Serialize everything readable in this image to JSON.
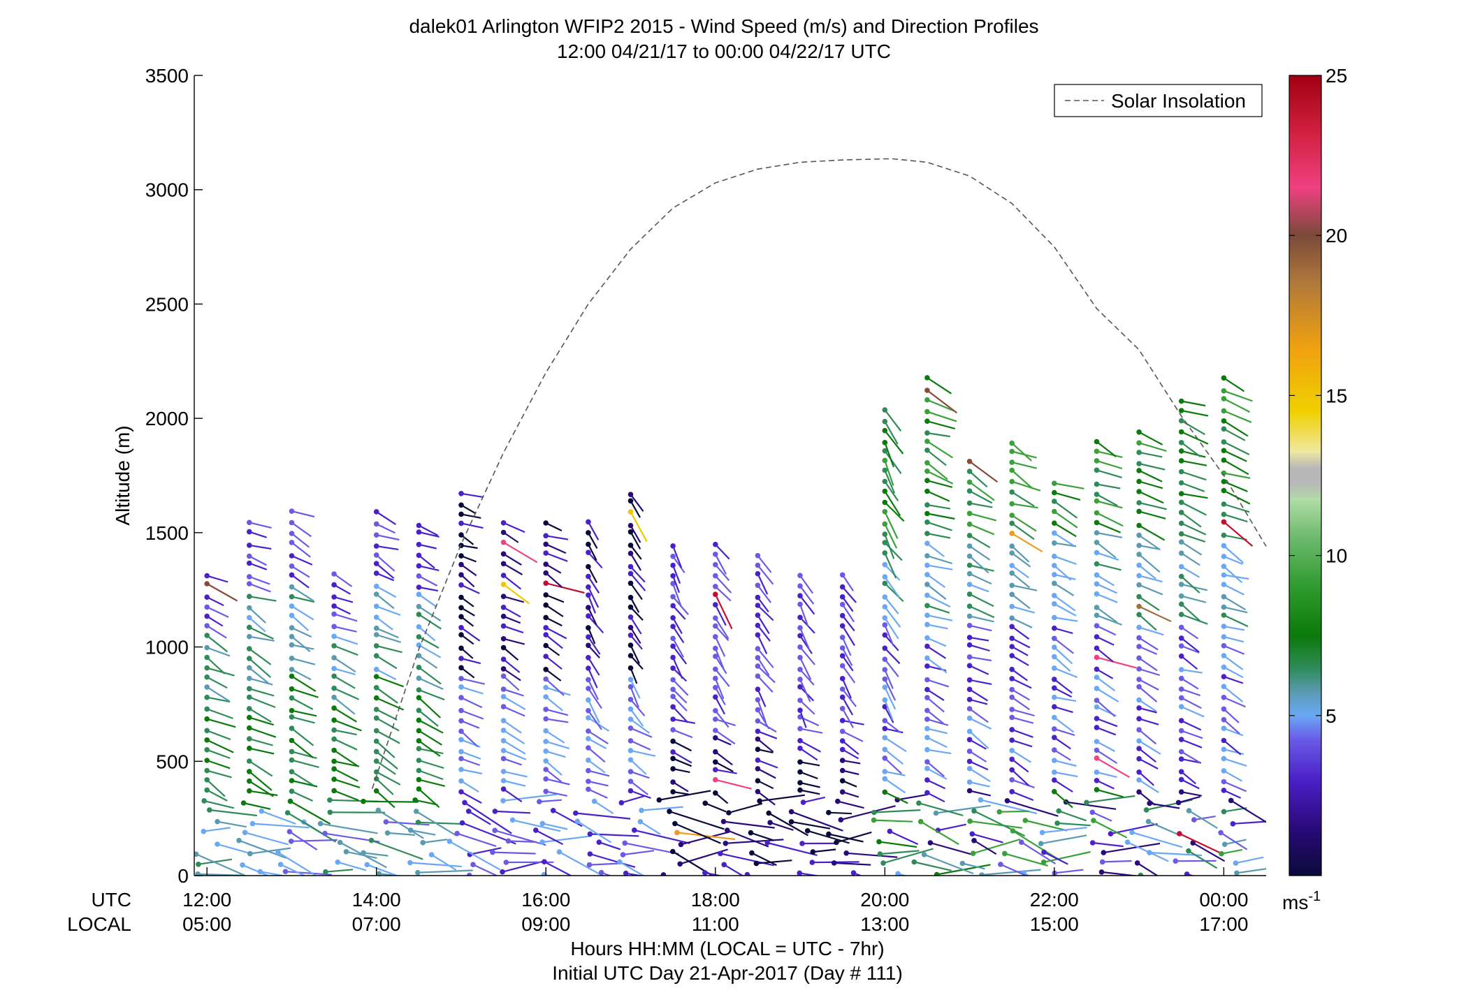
{
  "chart_data": {
    "type": "scatter",
    "subtype": "wind-barb-profile",
    "title": "dalek01 Arlington WFIP2 2015 - Wind Speed (m/s) and Direction Profiles",
    "subtitle": "12:00 04/21/17 to 00:00 04/22/17  UTC",
    "ylabel": "Altitude (m)",
    "xlabel": "Hours HH:MM  (LOCAL = UTC - 7hr)",
    "xlabel2": "Initial UTC Day 21-Apr-2017 (Day # 111)",
    "row_labels": {
      "utc": "UTC",
      "local": "LOCAL"
    },
    "ylim": [
      0,
      3500
    ],
    "yticks": [
      "0",
      "500",
      "1000",
      "1500",
      "2000",
      "2500",
      "3000",
      "3500"
    ],
    "ytick_values": [
      0,
      500,
      1000,
      1500,
      2000,
      2500,
      3000,
      3500
    ],
    "xlim": [
      11.85,
      24.5
    ],
    "xtick_values": [
      12,
      14,
      16,
      18,
      20,
      22,
      24
    ],
    "xticks_utc": [
      "12:00",
      "14:00",
      "16:00",
      "18:00",
      "20:00",
      "22:00",
      "00:00"
    ],
    "xticks_local": [
      "05:00",
      "07:00",
      "09:00",
      "11:00",
      "13:00",
      "15:00",
      "17:00"
    ],
    "legend": {
      "label": "Solar Insolation",
      "position": "top-right"
    },
    "colorbar": {
      "unit_main": "ms",
      "unit_sup": "-1",
      "range": [
        0,
        25
      ],
      "ticks": [
        "5",
        "10",
        "15",
        "20",
        "25"
      ],
      "tick_values": [
        5,
        10,
        15,
        20,
        25
      ]
    },
    "solar_insolation": {
      "x": [
        13.95,
        14.5,
        15.0,
        15.5,
        16.0,
        16.5,
        17.0,
        17.5,
        18.0,
        18.5,
        19.0,
        19.5,
        20.0,
        20.1,
        20.5,
        21.0,
        21.5,
        22.0,
        22.5,
        23.0,
        23.5,
        24.0,
        24.5
      ],
      "y": [
        380,
        990,
        1450,
        1850,
        2200,
        2500,
        2740,
        2920,
        3030,
        3090,
        3120,
        3130,
        3135,
        3135,
        3120,
        3060,
        2940,
        2750,
        2480,
        2300,
        2010,
        1750,
        1440
      ]
    },
    "profile_times": [
      12.0,
      12.5,
      13.0,
      13.5,
      14.0,
      14.5,
      15.0,
      15.5,
      16.0,
      16.5,
      17.0,
      17.5,
      18.0,
      18.5,
      19.0,
      19.5,
      20.0,
      20.5,
      21.0,
      21.5,
      22.0,
      22.5,
      23.0,
      23.5,
      24.0
    ],
    "profile_tops": [
      1340,
      1560,
      1620,
      1340,
      1620,
      1560,
      1700,
      1560,
      1560,
      1560,
      1700,
      1480,
      1480,
      1420,
      1340,
      1340,
      2060,
      2190,
      1840,
      1910,
      1760,
      1910,
      1980,
      2120,
      2190
    ],
    "color_scale": [
      "#0a0a3a",
      "#2a0a7a",
      "#4a20c8",
      "#6a5ae6",
      "#6aa8f5",
      "#5a9ab0",
      "#2e8b57",
      "#0a7a0a",
      "#3aa03a",
      "#a8d8a0",
      "#c8c8c8",
      "#f0e080",
      "#f0c800",
      "#f09a20",
      "#a0703a",
      "#8a4a3a",
      "#f04080",
      "#c01030",
      "#a00010"
    ]
  }
}
